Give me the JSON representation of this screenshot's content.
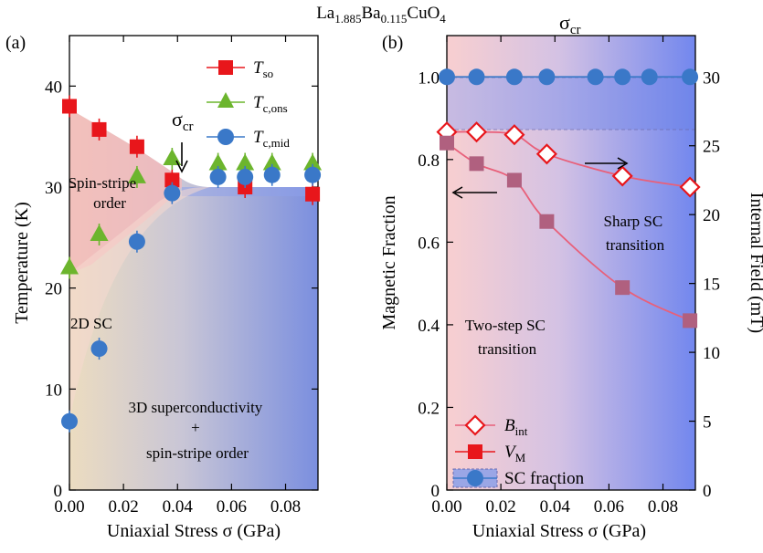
{
  "figure_title": {
    "main": "La",
    "sub1": "1.885",
    "mid": "Ba",
    "sub2": "0.115",
    "tail": "CuO",
    "sub3": "4"
  },
  "colors": {
    "red": "#e8161b",
    "green": "#6cb52d",
    "blue": "#3a78c8",
    "pink_line": "#e8607a",
    "purple_marker": "#a8607a",
    "bg_left_pink": "#f6c8c8",
    "bg_right_blue": "#6f86e8"
  },
  "chart_data": [
    {
      "type": "scatter",
      "panel_label": "(a)",
      "xlabel": "Uniaxial Stress σ (GPa)",
      "ylabel": "Temperature (K)",
      "xlim": [
        0,
        0.092
      ],
      "ylim": [
        0,
        45
      ],
      "xticks": [
        "0.00",
        "0.02",
        "0.04",
        "0.06",
        "0.08"
      ],
      "yticks": [
        "0",
        "10",
        "20",
        "30",
        "40"
      ],
      "legend_position": "top-right",
      "series": [
        {
          "name": "T_so",
          "legend_main": "T",
          "legend_sub": "so",
          "marker": "square",
          "color": "#e8161b",
          "x": [
            0.0,
            0.011,
            0.025,
            0.038,
            0.065,
            0.09
          ],
          "y": [
            38.0,
            35.7,
            34.0,
            30.7,
            30.0,
            29.3
          ]
        },
        {
          "name": "T_c,ons",
          "legend_main": "T",
          "legend_sub": "c,ons",
          "marker": "triangle",
          "color": "#6cb52d",
          "x": [
            0.0,
            0.011,
            0.025,
            0.038,
            0.055,
            0.065,
            0.075,
            0.09
          ],
          "y": [
            22.0,
            25.3,
            31.0,
            32.8,
            32.3,
            32.3,
            32.3,
            32.3
          ]
        },
        {
          "name": "T_c,mid",
          "legend_main": "T",
          "legend_sub": "c,mid",
          "marker": "circle",
          "color": "#3a78c8",
          "x": [
            0.0,
            0.011,
            0.025,
            0.038,
            0.055,
            0.065,
            0.075,
            0.09
          ],
          "y": [
            6.8,
            14.0,
            24.6,
            29.4,
            31.0,
            31.0,
            31.2,
            31.2
          ]
        }
      ],
      "annotations": {
        "sigma_cr": {
          "text": "σ",
          "sub": "cr",
          "x": 0.04
        },
        "spin_stripe": [
          "Spin-stripe",
          "order"
        ],
        "sc2d": "2D SC",
        "sc3d": [
          "3D superconductivity",
          "+",
          "spin-stripe order"
        ]
      }
    },
    {
      "type": "line",
      "panel_label": "(b)",
      "top_label": {
        "text": "σ",
        "sub": "cr"
      },
      "xlabel": "Uniaxial Stress σ (GPa)",
      "ylabel": "Magnetic Fraction",
      "y2label": "Internal Field (mT)",
      "xlim": [
        0,
        0.092
      ],
      "ylim": [
        0,
        1.1
      ],
      "y2lim": [
        0,
        33
      ],
      "xticks": [
        "0.00",
        "0.02",
        "0.04",
        "0.06",
        "0.08"
      ],
      "yticks": [
        "0",
        "0.2",
        "0.4",
        "0.6",
        "0.8",
        "1.0"
      ],
      "y2ticks": [
        "0",
        "5",
        "10",
        "15",
        "20",
        "25",
        "30"
      ],
      "legend_position": "bottom-left",
      "series": [
        {
          "name": "B_int",
          "legend_main": "B",
          "legend_sub": "int",
          "marker": "diamond-open",
          "axis": "right",
          "color": "#e8607a",
          "x": [
            0.0,
            0.011,
            0.025,
            0.037,
            0.065,
            0.09
          ],
          "y": [
            26.0,
            26.0,
            25.8,
            24.4,
            22.8,
            22.0
          ]
        },
        {
          "name": "V_M",
          "legend_main": "V",
          "legend_sub": "M",
          "marker": "square",
          "axis": "left",
          "color": "#e8607a",
          "x": [
            0.0,
            0.011,
            0.025,
            0.037,
            0.065,
            0.09
          ],
          "y": [
            0.84,
            0.79,
            0.75,
            0.65,
            0.49,
            0.41
          ]
        },
        {
          "name": "SC fraction",
          "legend_main": "SC fraction",
          "marker": "circle",
          "axis": "left",
          "color": "#3a78c8",
          "x": [
            0.0,
            0.011,
            0.025,
            0.037,
            0.055,
            0.065,
            0.075,
            0.09
          ],
          "y": [
            1.0,
            1.0,
            1.0,
            1.0,
            1.0,
            1.0,
            1.0,
            1.0
          ],
          "band": [
            0.9,
            1.025
          ]
        }
      ],
      "annotations": {
        "sharp": [
          "Sharp SC",
          "transition"
        ],
        "twostep": [
          "Two-step SC",
          "transition"
        ]
      }
    }
  ]
}
